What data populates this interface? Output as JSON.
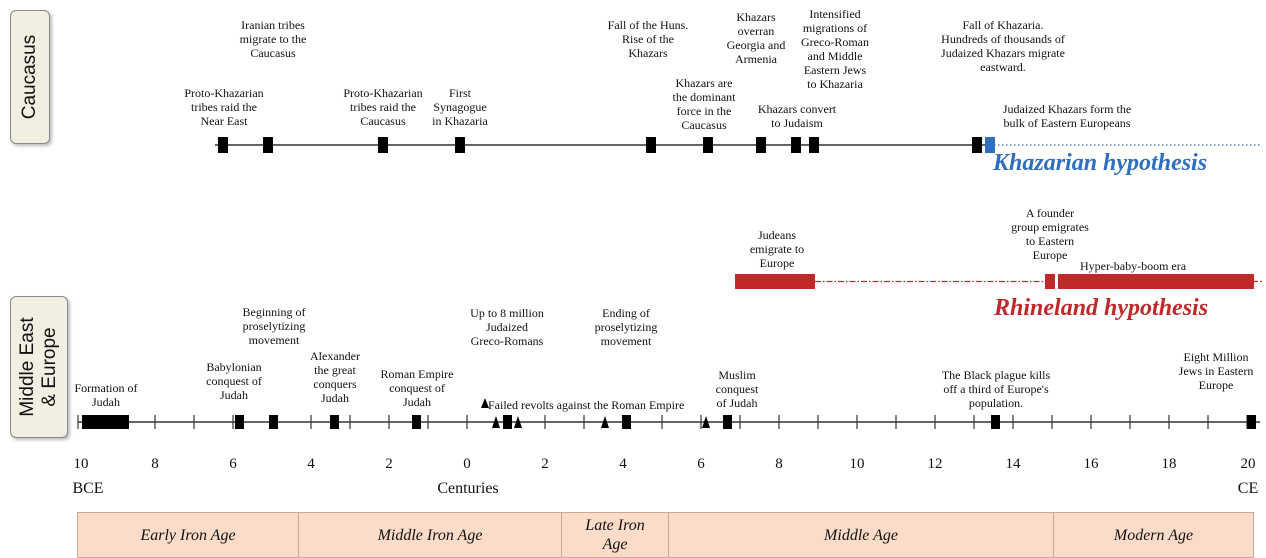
{
  "side_labels": {
    "top": "Caucasus",
    "bottom": "Middle East\n& Europe"
  },
  "hypotheses": {
    "khazarian": {
      "label": "Khazarian hypothesis",
      "color": "#2e6fbf"
    },
    "rhineland": {
      "label": "Rhineland hypothesis",
      "color": "#c0282a"
    }
  },
  "axis": {
    "ticks": [
      "10",
      "8",
      "6",
      "4",
      "2",
      "0",
      "2",
      "4",
      "6",
      "8",
      "10",
      "12",
      "14",
      "16",
      "18",
      "20"
    ],
    "left_label": "BCE",
    "center_label": "Centuries",
    "right_label": "CE"
  },
  "caucasus_events": [
    {
      "text": "Iranian tribes\nmigrate to the\nCaucasus"
    },
    {
      "text": "Proto-Khazarian\ntribes raid the\nNear East"
    },
    {
      "text": "Proto-Khazarian\ntribes raid the\nCaucasus"
    },
    {
      "text": "First\nSynagogue\nin Khazaria"
    },
    {
      "text": "Fall of the Huns.\nRise of the\nKhazars"
    },
    {
      "text": "Khazars are\nthe dominant\nforce in the\nCaucasus"
    },
    {
      "text": "Khazars\noverran\nGeorgia and\nArmenia"
    },
    {
      "text": "Intensified\nmigrations of\nGreco-Roman\nand Middle\nEastern Jews\nto Khazaria"
    },
    {
      "text": "Khazars convert\nto Judaism"
    },
    {
      "text": "Fall of Khazaria.\nHundreds of thousands of\nJudaized Khazars migrate\neastward."
    },
    {
      "text": "Judaized Khazars form the\nbulk of Eastern Europeans"
    }
  ],
  "rhineland_events": [
    {
      "text": "Judeans\nemigrate to\nEurope"
    },
    {
      "text": "A founder\ngroup emigrates\nto Eastern\nEurope"
    },
    {
      "text": "Hyper-baby-boom era"
    }
  ],
  "middle_east_events": [
    {
      "text": "Formation of\nJudah"
    },
    {
      "text": "Babylonian\nconquest of\nJudah"
    },
    {
      "text": "Beginning of\nproselytizing\nmovement"
    },
    {
      "text": "Alexander\nthe great\nconquers\nJudah"
    },
    {
      "text": "Roman Empire\nconquest of\nJudah"
    },
    {
      "text": "Up to 8 million\nJudaized\nGreco-Romans"
    },
    {
      "text": "Failed revolts against the Roman Empire"
    },
    {
      "text": "Ending of\nproselytizing\nmovement"
    },
    {
      "text": "Muslim\nconquest\nof Judah"
    },
    {
      "text": "The Black plague kills\noff a third of Europe's\npopulation."
    },
    {
      "text": "Eight Million\nJews in Eastern\nEurope"
    }
  ],
  "eras": [
    {
      "label": "Early Iron Age"
    },
    {
      "label": "Middle Iron Age"
    },
    {
      "label": "Late Iron\nAge"
    },
    {
      "label": "Middle Age"
    },
    {
      "label": "Modern Age"
    }
  ]
}
